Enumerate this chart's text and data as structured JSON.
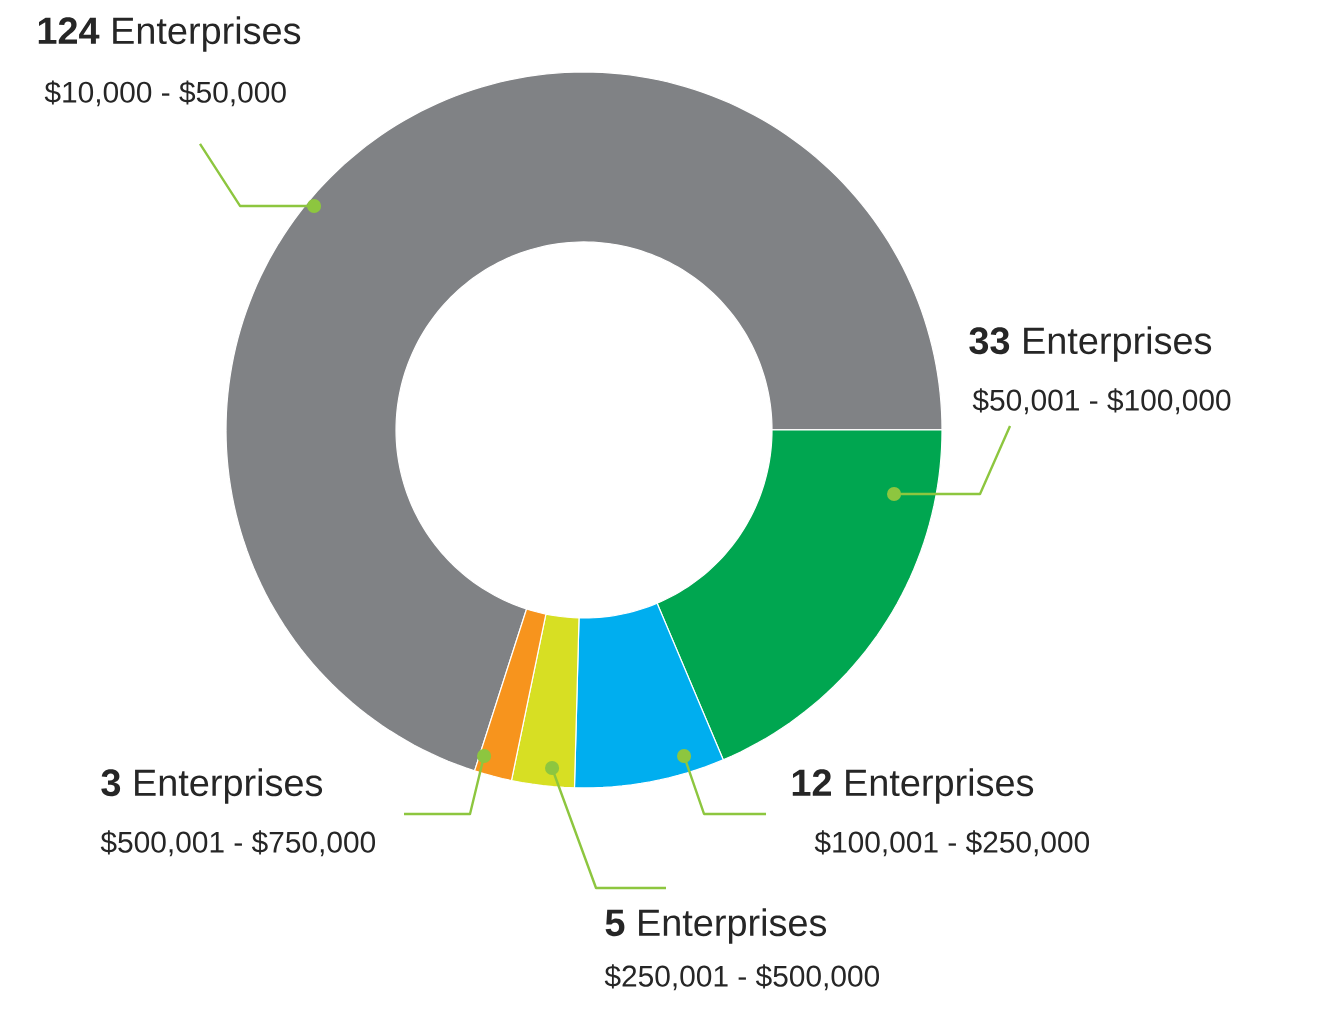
{
  "chart_data": {
    "type": "donut",
    "categories": [
      "$10,000 - $50,000",
      "$50,001 - $100,000",
      "$100,001 - $250,000",
      "$250,001 - $500,000",
      "$500,001 - $750,000"
    ],
    "values": [
      124,
      33,
      12,
      5,
      3
    ],
    "colors": [
      "#808285",
      "#00a650",
      "#00aeef",
      "#d7df23",
      "#f7941d"
    ],
    "value_labels": [
      "**124** Enterprises",
      "**33** Enterprises",
      "**12** Enterprises",
      "**5** Enterprises",
      "**3** Enterprises"
    ]
  }
}
